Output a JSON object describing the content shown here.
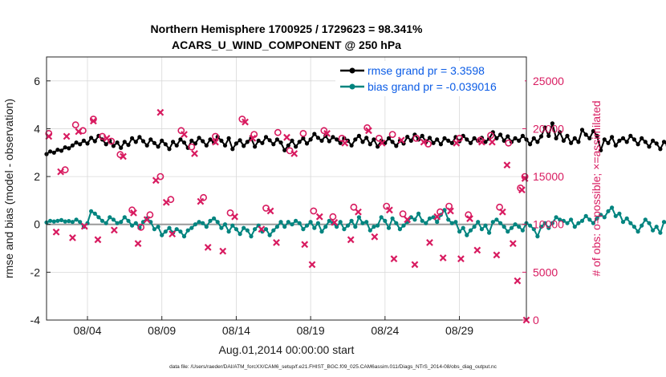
{
  "figure": {
    "title_line1": "Northern Hemisphere 1700925 / 1729623 = 98.341%",
    "title_line2": "ACARS_U_WIND_COMPONENT @ 250 hPa",
    "xlabel": "Aug.01,2014 00:00:00 start",
    "ylabel_left": "rmse and bias (model - observation)",
    "ylabel_right": "# of obs: o=possible; ×=assimilated",
    "footnote": "data file: /Users/raeder/DAI/ATM_forcXX/CAM6_setup/f.e21.FHIST_BGC.f09_025.CAM6assim.011/Diags_NTrS_2014-08/obs_diag_output.nc",
    "legend": {
      "rmse_label": "rmse grand pr = 3.3598",
      "bias_label": "bias grand pr = -0.039016"
    },
    "colors": {
      "rmse": "#000000",
      "bias": "#00847f",
      "obs": "#d81b60",
      "legend_text": "#0b5ce6",
      "zero_line": "#9a9a9a",
      "grid": "#d9d9d9"
    }
  },
  "chart_data": {
    "type": "line",
    "x_unit": "days since Aug.01,2014 00:00:00",
    "xlim": [
      0.25,
      32.5
    ],
    "x_ticks": [
      3,
      8,
      13,
      18,
      23,
      28
    ],
    "x_tick_labels": [
      "08/04",
      "08/09",
      "08/14",
      "08/19",
      "08/24",
      "08/29"
    ],
    "ylim_left": [
      -4,
      7
    ],
    "y_ticks_left": [
      -4,
      -2,
      0,
      2,
      4,
      6
    ],
    "ylim_right": [
      0,
      27500
    ],
    "y_ticks_right": [
      0,
      5000,
      10000,
      15000,
      20000,
      25000
    ],
    "grid": true,
    "legend_position": "top-right",
    "sample_interval_days": 0.25,
    "series": [
      {
        "name": "rmse",
        "axis": "left",
        "start_day": 0.25,
        "values": [
          2.94,
          3.05,
          3.0,
          3.12,
          3.08,
          3.22,
          3.18,
          3.3,
          3.42,
          3.35,
          3.5,
          3.38,
          3.62,
          3.48,
          3.7,
          3.55,
          3.35,
          3.5,
          3.28,
          3.42,
          3.2,
          3.45,
          3.32,
          3.6,
          3.45,
          3.65,
          3.48,
          3.3,
          3.55,
          3.4,
          3.25,
          3.5,
          3.35,
          3.15,
          3.45,
          3.3,
          3.55,
          3.42,
          3.2,
          3.5,
          3.38,
          3.62,
          3.48,
          3.3,
          3.55,
          3.42,
          3.66,
          3.5,
          3.3,
          3.6,
          3.15,
          3.38,
          3.52,
          3.28,
          3.45,
          3.6,
          3.25,
          3.5,
          3.4,
          3.65,
          3.52,
          3.35,
          3.55,
          3.42,
          3.1,
          3.3,
          3.5,
          3.25,
          3.45,
          3.6,
          3.38,
          3.55,
          3.78,
          3.62,
          3.5,
          3.7,
          3.48,
          3.65,
          3.55,
          3.4,
          3.6,
          3.5,
          3.3,
          3.55,
          3.7,
          3.45,
          3.62,
          3.35,
          3.55,
          3.25,
          3.5,
          3.4,
          3.6,
          3.45,
          3.28,
          3.5,
          3.38,
          3.66,
          3.5,
          3.75,
          3.55,
          3.7,
          3.45,
          3.62,
          3.4,
          3.55,
          3.35,
          3.6,
          3.5,
          3.4,
          3.65,
          3.48,
          3.7,
          3.55,
          3.4,
          3.6,
          3.5,
          3.62,
          3.45,
          3.58,
          3.85,
          3.6,
          3.75,
          3.5,
          3.68,
          3.45,
          3.6,
          3.5,
          3.7,
          3.55,
          3.35,
          3.6,
          3.45,
          3.68,
          4.05,
          3.7,
          4.22,
          3.6,
          3.85,
          3.5,
          3.7,
          3.4,
          3.6,
          3.45,
          3.95,
          3.75,
          3.6,
          3.9,
          3.7,
          3.1,
          3.55,
          3.4,
          3.65,
          3.3,
          3.5,
          3.6,
          3.45,
          3.7,
          3.55,
          3.35,
          3.6,
          3.45,
          3.25,
          3.5,
          3.38,
          3.15,
          3.45,
          3.3,
          3.6,
          3.45,
          3.55,
          3.4,
          3.65,
          3.5,
          3.38,
          3.6,
          3.75,
          3.62,
          3.5,
          3.48
        ]
      },
      {
        "name": "bias",
        "axis": "left",
        "start_day": 0.25,
        "values": [
          0.08,
          0.15,
          0.12,
          0.15,
          0.18,
          0.12,
          0.14,
          0.1,
          0.2,
          0.1,
          -0.1,
          0.05,
          0.55,
          0.45,
          0.3,
          0.15,
          0.05,
          0.3,
          0.2,
          0.05,
          0.1,
          0.3,
          0.15,
          -0.05,
          0.05,
          -0.15,
          0.1,
          0.25,
          0.1,
          -0.2,
          -0.1,
          -0.45,
          -0.3,
          -0.15,
          -0.35,
          -0.2,
          -0.3,
          -0.5,
          -0.25,
          -0.15,
          0.0,
          0.1,
          0.05,
          -0.1,
          0.15,
          0.25,
          0.1,
          -0.15,
          0.0,
          -0.3,
          -0.05,
          -0.2,
          -0.4,
          -0.15,
          -0.25,
          -0.5,
          -0.2,
          -0.05,
          -0.3,
          -0.2,
          -0.45,
          -0.25,
          -0.1,
          0.1,
          -0.1,
          0.1,
          0.0,
          0.15,
          0.05,
          -0.2,
          -0.05,
          0.1,
          -0.15,
          0.05,
          -0.3,
          -0.1,
          0.15,
          0.05,
          -0.1,
          0.1,
          -0.2,
          -0.05,
          0.15,
          -0.1,
          0.3,
          0.05,
          0.1,
          -0.25,
          -0.1,
          -0.05,
          0.3,
          0.15,
          -0.15,
          0.25,
          0.05,
          -0.2,
          -0.05,
          0.1,
          0.3,
          0.2,
          0.45,
          0.15,
          0.05,
          0.25,
          0.3,
          0.1,
          0.4,
          0.6,
          0.2,
          0.05,
          0.1,
          -0.3,
          -0.15,
          -0.45,
          -0.25,
          -0.1,
          0.1,
          -0.2,
          -0.05,
          -0.35,
          0.1,
          0.2,
          0.05,
          -0.1,
          -0.3,
          -0.15,
          0.0,
          -0.1,
          -0.25,
          0.05,
          -0.05,
          -0.2,
          -0.5,
          -0.1,
          0.05,
          -0.15,
          0.05,
          0.3,
          0.2,
          0.15,
          0.05,
          0.2,
          -0.1,
          0.05,
          0.15,
          0.35,
          0.2,
          0.05,
          0.25,
          0.4,
          0.3,
          0.55,
          0.7,
          0.35,
          0.45,
          0.1,
          0.25,
          0.05,
          -0.1,
          -0.3,
          -0.05,
          0.2,
          0.05,
          -0.25,
          -0.1,
          -0.35,
          0.1,
          0.05,
          -0.4,
          -0.2,
          -0.3,
          -0.1,
          -0.25,
          -0.45,
          -0.15,
          -0.3,
          -0.55,
          -0.4,
          -0.45,
          -0.3,
          -0.2,
          -0.15
        ]
      },
      {
        "name": "obs_possible",
        "axis": "right",
        "marker": "circle",
        "points": [
          [
            0.4,
            19500
          ],
          [
            1.5,
            15700
          ],
          [
            2.2,
            20400
          ],
          [
            2.7,
            19800
          ],
          [
            3.4,
            21000
          ],
          [
            4.0,
            19200
          ],
          [
            4.6,
            18700
          ],
          [
            5.2,
            17300
          ],
          [
            6.0,
            11500
          ],
          [
            6.6,
            9700
          ],
          [
            7.2,
            11000
          ],
          [
            7.9,
            15000
          ],
          [
            8.6,
            12600
          ],
          [
            9.3,
            19800
          ],
          [
            10.0,
            18100
          ],
          [
            10.8,
            12800
          ],
          [
            11.6,
            19200
          ],
          [
            12.6,
            11200
          ],
          [
            13.4,
            21000
          ],
          [
            14.2,
            19400
          ],
          [
            15.0,
            11700
          ],
          [
            15.8,
            19600
          ],
          [
            16.6,
            17700
          ],
          [
            17.5,
            19500
          ],
          [
            18.2,
            11400
          ],
          [
            18.9,
            19800
          ],
          [
            19.5,
            10800
          ],
          [
            20.1,
            19000
          ],
          [
            20.9,
            11800
          ],
          [
            21.8,
            20100
          ],
          [
            22.6,
            19000
          ],
          [
            23.1,
            11900
          ],
          [
            23.5,
            19400
          ],
          [
            24.2,
            11100
          ],
          [
            25.1,
            19000
          ],
          [
            25.9,
            18400
          ],
          [
            26.7,
            11300
          ],
          [
            27.3,
            11900
          ],
          [
            28.0,
            19000
          ],
          [
            28.6,
            11000
          ],
          [
            29.4,
            18800
          ],
          [
            30.1,
            19300
          ],
          [
            30.7,
            11800
          ],
          [
            31.3,
            18500
          ],
          [
            32.1,
            13800
          ],
          [
            32.4,
            15000
          ]
        ]
      },
      {
        "name": "obs_assimilated",
        "axis": "right",
        "marker": "x",
        "points": [
          [
            0.4,
            19200
          ],
          [
            0.9,
            9200
          ],
          [
            1.2,
            15500
          ],
          [
            1.6,
            19200
          ],
          [
            2.0,
            8600
          ],
          [
            2.4,
            19700
          ],
          [
            2.8,
            9800
          ],
          [
            3.4,
            20800
          ],
          [
            3.7,
            8400
          ],
          [
            4.3,
            19000
          ],
          [
            4.8,
            9400
          ],
          [
            5.4,
            17100
          ],
          [
            6.1,
            11200
          ],
          [
            6.4,
            8000
          ],
          [
            7.0,
            10500
          ],
          [
            7.6,
            14600
          ],
          [
            7.9,
            21700
          ],
          [
            8.3,
            12300
          ],
          [
            8.7,
            9000
          ],
          [
            9.5,
            19400
          ],
          [
            10.2,
            17400
          ],
          [
            10.6,
            12400
          ],
          [
            11.1,
            7600
          ],
          [
            11.6,
            18600
          ],
          [
            12.1,
            7200
          ],
          [
            12.9,
            10800
          ],
          [
            13.6,
            20700
          ],
          [
            14.1,
            19000
          ],
          [
            14.7,
            9500
          ],
          [
            15.3,
            11400
          ],
          [
            15.7,
            8100
          ],
          [
            16.4,
            19100
          ],
          [
            16.9,
            17400
          ],
          [
            17.6,
            7900
          ],
          [
            18.1,
            5800
          ],
          [
            18.6,
            10800
          ],
          [
            19.1,
            19500
          ],
          [
            19.6,
            10200
          ],
          [
            20.3,
            18500
          ],
          [
            20.7,
            8400
          ],
          [
            21.2,
            11300
          ],
          [
            21.9,
            19800
          ],
          [
            22.3,
            8700
          ],
          [
            22.8,
            18500
          ],
          [
            23.3,
            11500
          ],
          [
            23.6,
            6400
          ],
          [
            24.1,
            18800
          ],
          [
            24.5,
            10500
          ],
          [
            25.0,
            5800
          ],
          [
            25.6,
            18600
          ],
          [
            26.0,
            8100
          ],
          [
            26.5,
            10800
          ],
          [
            26.9,
            6500
          ],
          [
            27.4,
            11400
          ],
          [
            27.8,
            18500
          ],
          [
            28.1,
            6400
          ],
          [
            28.7,
            10600
          ],
          [
            29.2,
            7300
          ],
          [
            29.5,
            18600
          ],
          [
            30.2,
            18600
          ],
          [
            30.5,
            6800
          ],
          [
            30.9,
            11300
          ],
          [
            31.2,
            16200
          ],
          [
            31.6,
            8000
          ],
          [
            31.9,
            4100
          ],
          [
            32.2,
            13600
          ],
          [
            32.4,
            14800
          ],
          [
            32.5,
            0
          ]
        ]
      }
    ]
  }
}
